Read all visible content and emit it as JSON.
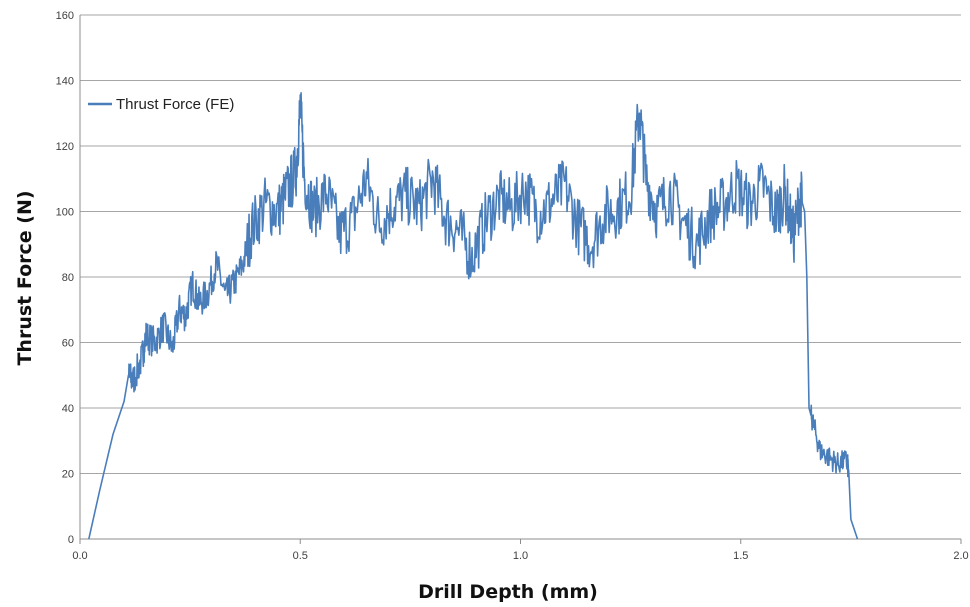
{
  "chart_data": {
    "type": "line",
    "title": "",
    "xlabel": "Drill Depth (mm)",
    "ylabel": "Thrust Force (N)",
    "xlim": [
      0.0,
      2.0
    ],
    "ylim": [
      0,
      160
    ],
    "xticks": [
      0.0,
      0.5,
      1.0,
      1.5,
      2.0
    ],
    "xtick_labels": [
      "0.0",
      "0.5",
      "1.0",
      "1.5",
      "2.0"
    ],
    "yticks": [
      0,
      20,
      40,
      60,
      80,
      100,
      120,
      140,
      160
    ],
    "ytick_labels": [
      "0",
      "20",
      "40",
      "60",
      "80",
      "100",
      "120",
      "140",
      "160"
    ],
    "grid": "horizontal",
    "legend_position": "top-left",
    "series": [
      {
        "name": "Thrust Force (FE)",
        "color": "#4a7ebb",
        "points": [
          [
            0.02,
            0
          ],
          [
            0.045,
            15
          ],
          [
            0.075,
            32
          ],
          [
            0.1,
            42
          ],
          [
            0.11,
            50
          ],
          [
            0.12,
            48
          ],
          [
            0.14,
            55
          ],
          [
            0.15,
            62
          ],
          [
            0.17,
            60
          ],
          [
            0.19,
            65
          ],
          [
            0.21,
            58
          ],
          [
            0.225,
            70
          ],
          [
            0.24,
            68
          ],
          [
            0.255,
            78
          ],
          [
            0.27,
            72
          ],
          [
            0.29,
            75
          ],
          [
            0.31,
            84
          ],
          [
            0.33,
            74
          ],
          [
            0.35,
            78
          ],
          [
            0.37,
            84
          ],
          [
            0.39,
            95
          ],
          [
            0.42,
            102
          ],
          [
            0.45,
            100
          ],
          [
            0.47,
            106
          ],
          [
            0.49,
            112
          ],
          [
            0.5,
            132
          ],
          [
            0.51,
            110
          ],
          [
            0.53,
            100
          ],
          [
            0.56,
            106
          ],
          [
            0.59,
            93
          ],
          [
            0.62,
            98
          ],
          [
            0.65,
            110
          ],
          [
            0.68,
            96
          ],
          [
            0.71,
            102
          ],
          [
            0.74,
            105
          ],
          [
            0.77,
            101
          ],
          [
            0.8,
            110
          ],
          [
            0.83,
            98
          ],
          [
            0.86,
            94
          ],
          [
            0.89,
            86
          ],
          [
            0.92,
            97
          ],
          [
            0.95,
            104
          ],
          [
            0.98,
            101
          ],
          [
            1.01,
            107
          ],
          [
            1.04,
            99
          ],
          [
            1.07,
            103
          ],
          [
            1.1,
            108
          ],
          [
            1.13,
            96
          ],
          [
            1.16,
            90
          ],
          [
            1.19,
            99
          ],
          [
            1.22,
            101
          ],
          [
            1.25,
            106
          ],
          [
            1.27,
            131
          ],
          [
            1.285,
            110
          ],
          [
            1.31,
            100
          ],
          [
            1.34,
            106
          ],
          [
            1.37,
            97
          ],
          [
            1.4,
            90
          ],
          [
            1.43,
            99
          ],
          [
            1.46,
            102
          ],
          [
            1.49,
            108
          ],
          [
            1.52,
            102
          ],
          [
            1.55,
            108
          ],
          [
            1.58,
            99
          ],
          [
            1.6,
            106
          ],
          [
            1.62,
            92
          ],
          [
            1.635,
            105
          ],
          [
            1.645,
            100
          ],
          [
            1.65,
            80
          ],
          [
            1.655,
            40
          ],
          [
            1.665,
            35
          ],
          [
            1.68,
            27
          ],
          [
            1.7,
            25
          ],
          [
            1.72,
            23
          ],
          [
            1.74,
            24
          ],
          [
            1.745,
            21
          ],
          [
            1.75,
            6
          ],
          [
            1.76,
            2
          ],
          [
            1.765,
            0
          ]
        ]
      }
    ]
  }
}
